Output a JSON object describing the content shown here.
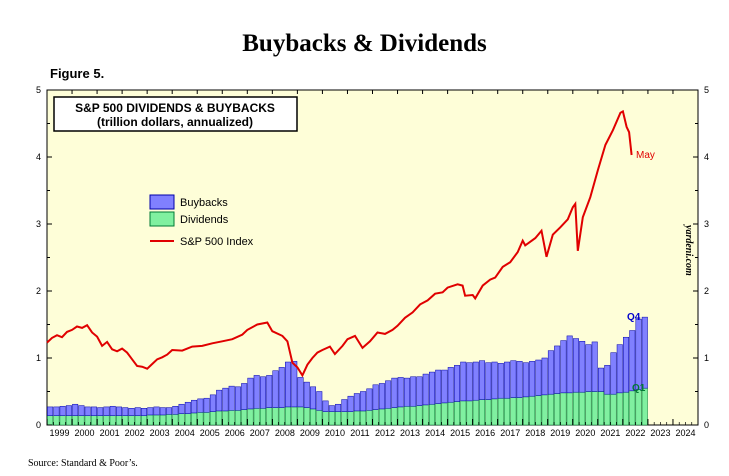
{
  "page": {
    "title": "Buybacks & Dividends",
    "figure_label": "Figure 5.",
    "source": "Source: Standard & Poor’s.",
    "watermark": "yardeni.com"
  },
  "colors": {
    "plot_bg": "#fefed8",
    "buybacks": "#8080ff",
    "buybacks_edge": "#0000aa",
    "dividends": "#80f0a0",
    "dividends_edge": "#007a33",
    "index_line": "#e00000",
    "q4_label": "#0000cc",
    "q1_label": "#007a33",
    "may_label": "#e00000"
  },
  "chart_data": {
    "type": "bar",
    "title": "S&P 500 DIVIDENDS & BUYBACKS",
    "subtitle": "(trillion dollars, annualized)",
    "ylim": [
      0,
      5
    ],
    "yticks": [
      0,
      1,
      2,
      3,
      4,
      5
    ],
    "xlim": [
      1999,
      2025
    ],
    "xticks": [
      "1999",
      "2000",
      "2001",
      "2002",
      "2003",
      "2004",
      "2005",
      "2006",
      "2007",
      "2008",
      "2009",
      "2010",
      "2011",
      "2012",
      "2013",
      "2014",
      "2015",
      "2016",
      "2017",
      "2018",
      "2019",
      "2020",
      "2021",
      "2022",
      "2023",
      "2024"
    ],
    "legend": [
      "Buybacks",
      "Dividends",
      "S&P 500 Index"
    ],
    "legend_position": "upper-left",
    "grid": false,
    "quarter_start": 1999.0,
    "buybacks": [
      0.13,
      0.13,
      0.14,
      0.15,
      0.17,
      0.15,
      0.13,
      0.13,
      0.12,
      0.13,
      0.14,
      0.13,
      0.12,
      0.11,
      0.12,
      0.11,
      0.11,
      0.12,
      0.11,
      0.1,
      0.12,
      0.14,
      0.17,
      0.19,
      0.2,
      0.21,
      0.25,
      0.31,
      0.34,
      0.36,
      0.35,
      0.39,
      0.46,
      0.49,
      0.47,
      0.48,
      0.55,
      0.6,
      0.67,
      0.68,
      0.44,
      0.38,
      0.33,
      0.28,
      0.16,
      0.09,
      0.11,
      0.18,
      0.23,
      0.26,
      0.29,
      0.32,
      0.37,
      0.38,
      0.41,
      0.44,
      0.44,
      0.42,
      0.44,
      0.43,
      0.46,
      0.48,
      0.5,
      0.49,
      0.52,
      0.54,
      0.58,
      0.57,
      0.57,
      0.58,
      0.55,
      0.55,
      0.52,
      0.54,
      0.55,
      0.54,
      0.51,
      0.52,
      0.53,
      0.55,
      0.65,
      0.71,
      0.78,
      0.85,
      0.8,
      0.76,
      0.7,
      0.74,
      0.35,
      0.43,
      0.62,
      0.72,
      0.82,
      0.9,
      1.05,
      1.06
    ],
    "dividends": [
      0.14,
      0.14,
      0.14,
      0.14,
      0.14,
      0.14,
      0.14,
      0.14,
      0.14,
      0.14,
      0.14,
      0.14,
      0.14,
      0.14,
      0.14,
      0.14,
      0.15,
      0.15,
      0.15,
      0.16,
      0.16,
      0.17,
      0.17,
      0.18,
      0.19,
      0.19,
      0.2,
      0.21,
      0.21,
      0.22,
      0.22,
      0.23,
      0.24,
      0.25,
      0.25,
      0.26,
      0.26,
      0.26,
      0.27,
      0.27,
      0.27,
      0.26,
      0.24,
      0.22,
      0.2,
      0.2,
      0.2,
      0.2,
      0.2,
      0.21,
      0.21,
      0.22,
      0.23,
      0.24,
      0.25,
      0.26,
      0.27,
      0.28,
      0.28,
      0.29,
      0.3,
      0.31,
      0.32,
      0.33,
      0.34,
      0.35,
      0.36,
      0.36,
      0.37,
      0.38,
      0.38,
      0.39,
      0.4,
      0.4,
      0.41,
      0.41,
      0.42,
      0.43,
      0.44,
      0.45,
      0.46,
      0.47,
      0.48,
      0.48,
      0.49,
      0.49,
      0.5,
      0.5,
      0.5,
      0.46,
      0.46,
      0.48,
      0.49,
      0.51,
      0.53,
      0.55
    ],
    "sp500_index_thousands": [
      [
        1999.0,
        1.23
      ],
      [
        1999.2,
        1.3
      ],
      [
        1999.4,
        1.34
      ],
      [
        1999.6,
        1.31
      ],
      [
        1999.8,
        1.39
      ],
      [
        2000.0,
        1.42
      ],
      [
        2000.2,
        1.47
      ],
      [
        2000.4,
        1.45
      ],
      [
        2000.6,
        1.49
      ],
      [
        2000.8,
        1.38
      ],
      [
        2001.0,
        1.32
      ],
      [
        2001.2,
        1.18
      ],
      [
        2001.4,
        1.24
      ],
      [
        2001.6,
        1.13
      ],
      [
        2001.8,
        1.1
      ],
      [
        2002.0,
        1.14
      ],
      [
        2002.2,
        1.08
      ],
      [
        2002.4,
        0.98
      ],
      [
        2002.6,
        0.88
      ],
      [
        2002.8,
        0.87
      ],
      [
        2003.0,
        0.84
      ],
      [
        2003.2,
        0.91
      ],
      [
        2003.4,
        0.98
      ],
      [
        2003.6,
        1.01
      ],
      [
        2003.8,
        1.05
      ],
      [
        2004.0,
        1.12
      ],
      [
        2004.4,
        1.11
      ],
      [
        2004.8,
        1.17
      ],
      [
        2005.2,
        1.18
      ],
      [
        2005.6,
        1.22
      ],
      [
        2006.0,
        1.25
      ],
      [
        2006.4,
        1.28
      ],
      [
        2006.8,
        1.35
      ],
      [
        2007.0,
        1.42
      ],
      [
        2007.4,
        1.5
      ],
      [
        2007.8,
        1.53
      ],
      [
        2008.0,
        1.4
      ],
      [
        2008.4,
        1.33
      ],
      [
        2008.6,
        1.25
      ],
      [
        2008.8,
        0.93
      ],
      [
        2009.0,
        0.86
      ],
      [
        2009.2,
        0.74
      ],
      [
        2009.4,
        0.9
      ],
      [
        2009.6,
        1.0
      ],
      [
        2009.8,
        1.08
      ],
      [
        2010.0,
        1.12
      ],
      [
        2010.3,
        1.17
      ],
      [
        2010.5,
        1.06
      ],
      [
        2010.8,
        1.18
      ],
      [
        2011.0,
        1.28
      ],
      [
        2011.3,
        1.33
      ],
      [
        2011.6,
        1.15
      ],
      [
        2011.9,
        1.25
      ],
      [
        2012.2,
        1.38
      ],
      [
        2012.5,
        1.36
      ],
      [
        2012.8,
        1.42
      ],
      [
        2013.0,
        1.48
      ],
      [
        2013.3,
        1.6
      ],
      [
        2013.6,
        1.68
      ],
      [
        2013.9,
        1.8
      ],
      [
        2014.2,
        1.86
      ],
      [
        2014.5,
        1.96
      ],
      [
        2014.8,
        1.98
      ],
      [
        2015.0,
        2.05
      ],
      [
        2015.4,
        2.1
      ],
      [
        2015.6,
        2.08
      ],
      [
        2015.7,
        1.93
      ],
      [
        2016.0,
        1.94
      ],
      [
        2016.1,
        1.89
      ],
      [
        2016.4,
        2.08
      ],
      [
        2016.7,
        2.17
      ],
      [
        2016.9,
        2.2
      ],
      [
        2017.2,
        2.36
      ],
      [
        2017.5,
        2.43
      ],
      [
        2017.8,
        2.58
      ],
      [
        2018.0,
        2.75
      ],
      [
        2018.1,
        2.68
      ],
      [
        2018.5,
        2.79
      ],
      [
        2018.75,
        2.9
      ],
      [
        2018.95,
        2.51
      ],
      [
        2019.2,
        2.84
      ],
      [
        2019.5,
        2.95
      ],
      [
        2019.8,
        3.07
      ],
      [
        2020.0,
        3.25
      ],
      [
        2020.1,
        3.3
      ],
      [
        2020.2,
        2.6
      ],
      [
        2020.4,
        3.1
      ],
      [
        2020.7,
        3.4
      ],
      [
        2021.0,
        3.8
      ],
      [
        2021.3,
        4.18
      ],
      [
        2021.6,
        4.4
      ],
      [
        2021.9,
        4.66
      ],
      [
        2022.0,
        4.68
      ],
      [
        2022.15,
        4.45
      ],
      [
        2022.25,
        4.37
      ],
      [
        2022.35,
        4.03
      ]
    ],
    "end_labels": {
      "buybacks": "Q4",
      "dividends": "Q1",
      "index": "May"
    },
    "right_axis_watermark": "yardeni.com"
  }
}
